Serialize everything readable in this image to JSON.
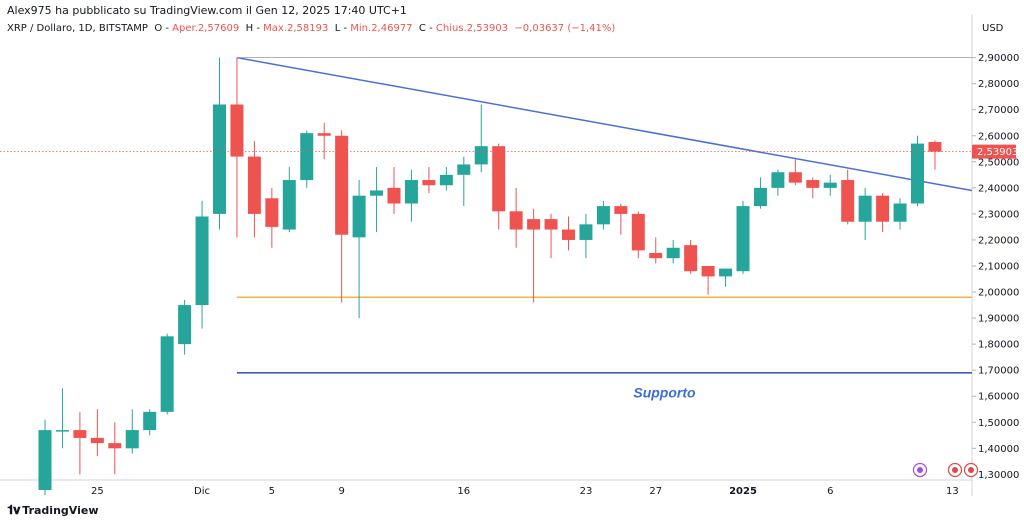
{
  "header": {
    "published_by": "Alex975 ha pubblicato su TradingView.com il Gen 12, 2025 17:40 UTC+1",
    "symbol": "XRP / Dollaro, 1D, BITSTAMP",
    "open_label": "O",
    "open_value": "Aper.2,57609",
    "high_label": "H",
    "high_value": "Max.2,58193",
    "low_label": "L",
    "low_value": "Min.2,46977",
    "close_label": "C",
    "close_value": "Chius.2,53903",
    "change_value": "−0,03637 (−1,41%)"
  },
  "axis": {
    "currency": "USD",
    "last_price_label": "2,53903"
  },
  "footer": {
    "brand": "TradingView",
    "logo_icon": "tradingview-logo-icon"
  },
  "colors": {
    "up": "#26a69a",
    "down": "#ef5350",
    "trendline": "#4a6fd8",
    "support_line": "#3b5bc4",
    "yellow_line": "#f2b544",
    "annotation": "#3b6fd8",
    "grid": "#f0f3fa"
  },
  "chart_data": {
    "type": "candlestick",
    "title": "XRP / Dollaro, 1D, BITSTAMP",
    "ylim": [
      1.24,
      2.96
    ],
    "y_ticks": [
      1.3,
      1.4,
      1.5,
      1.6,
      1.7,
      1.8,
      1.9,
      2.0,
      2.1,
      2.2,
      2.3,
      2.4,
      2.5,
      2.6,
      2.7,
      2.8,
      2.9
    ],
    "y_tick_labels": [
      "1,30000",
      "1,40000",
      "1,50000",
      "1,60000",
      "1,70000",
      "1,80000",
      "1,90000",
      "2,00000",
      "2,10000",
      "2,20000",
      "2,30000",
      "2,40000",
      "2,50000",
      "2,60000",
      "2,70000",
      "2,80000",
      "2,90000"
    ],
    "x_tick_labels": [
      {
        "index": 3,
        "label": "25"
      },
      {
        "index": 9,
        "label": "Dic"
      },
      {
        "index": 13,
        "label": "5"
      },
      {
        "index": 17,
        "label": "9"
      },
      {
        "index": 24,
        "label": "16"
      },
      {
        "index": 31,
        "label": "23"
      },
      {
        "index": 35,
        "label": "27"
      },
      {
        "index": 40,
        "label": "2025"
      },
      {
        "index": 45,
        "label": "6"
      },
      {
        "index": 52,
        "label": "13"
      }
    ],
    "candles": [
      {
        "o": 1.24,
        "h": 1.51,
        "l": 1.22,
        "c": 1.47
      },
      {
        "o": 1.47,
        "h": 1.63,
        "l": 1.4,
        "c": 1.47
      },
      {
        "o": 1.47,
        "h": 1.54,
        "l": 1.3,
        "c": 1.44
      },
      {
        "o": 1.44,
        "h": 1.55,
        "l": 1.37,
        "c": 1.42
      },
      {
        "o": 1.42,
        "h": 1.5,
        "l": 1.3,
        "c": 1.4
      },
      {
        "o": 1.4,
        "h": 1.55,
        "l": 1.38,
        "c": 1.47
      },
      {
        "o": 1.47,
        "h": 1.55,
        "l": 1.45,
        "c": 1.54
      },
      {
        "o": 1.54,
        "h": 1.84,
        "l": 1.53,
        "c": 1.83
      },
      {
        "o": 1.8,
        "h": 1.97,
        "l": 1.76,
        "c": 1.95
      },
      {
        "o": 1.95,
        "h": 2.35,
        "l": 1.86,
        "c": 2.29
      },
      {
        "o": 2.3,
        "h": 2.9,
        "l": 2.24,
        "c": 2.72
      },
      {
        "o": 2.72,
        "h": 2.9,
        "l": 2.21,
        "c": 2.52
      },
      {
        "o": 2.52,
        "h": 2.58,
        "l": 2.21,
        "c": 2.3
      },
      {
        "o": 2.36,
        "h": 2.4,
        "l": 2.17,
        "c": 2.25
      },
      {
        "o": 2.24,
        "h": 2.48,
        "l": 2.23,
        "c": 2.43
      },
      {
        "o": 2.43,
        "h": 2.62,
        "l": 2.4,
        "c": 2.61
      },
      {
        "o": 2.61,
        "h": 2.65,
        "l": 2.51,
        "c": 2.6
      },
      {
        "o": 2.6,
        "h": 2.62,
        "l": 1.96,
        "c": 2.22
      },
      {
        "o": 2.21,
        "h": 2.43,
        "l": 1.9,
        "c": 2.37
      },
      {
        "o": 2.37,
        "h": 2.48,
        "l": 2.23,
        "c": 2.39
      },
      {
        "o": 2.4,
        "h": 2.48,
        "l": 2.3,
        "c": 2.34
      },
      {
        "o": 2.34,
        "h": 2.47,
        "l": 2.27,
        "c": 2.43
      },
      {
        "o": 2.43,
        "h": 2.48,
        "l": 2.38,
        "c": 2.41
      },
      {
        "o": 2.41,
        "h": 2.48,
        "l": 2.39,
        "c": 2.45
      },
      {
        "o": 2.45,
        "h": 2.52,
        "l": 2.33,
        "c": 2.49
      },
      {
        "o": 2.49,
        "h": 2.72,
        "l": 2.46,
        "c": 2.56
      },
      {
        "o": 2.56,
        "h": 2.57,
        "l": 2.24,
        "c": 2.31
      },
      {
        "o": 2.31,
        "h": 2.4,
        "l": 2.17,
        "c": 2.24
      },
      {
        "o": 2.28,
        "h": 2.32,
        "l": 1.96,
        "c": 2.24
      },
      {
        "o": 2.28,
        "h": 2.3,
        "l": 2.13,
        "c": 2.24
      },
      {
        "o": 2.24,
        "h": 2.29,
        "l": 2.16,
        "c": 2.2
      },
      {
        "o": 2.2,
        "h": 2.3,
        "l": 2.13,
        "c": 2.26
      },
      {
        "o": 2.26,
        "h": 2.35,
        "l": 2.24,
        "c": 2.33
      },
      {
        "o": 2.33,
        "h": 2.34,
        "l": 2.22,
        "c": 2.3
      },
      {
        "o": 2.3,
        "h": 2.31,
        "l": 2.13,
        "c": 2.16
      },
      {
        "o": 2.15,
        "h": 2.21,
        "l": 2.11,
        "c": 2.13
      },
      {
        "o": 2.13,
        "h": 2.2,
        "l": 2.11,
        "c": 2.17
      },
      {
        "o": 2.18,
        "h": 2.2,
        "l": 2.07,
        "c": 2.08
      },
      {
        "o": 2.1,
        "h": 2.1,
        "l": 1.99,
        "c": 2.06
      },
      {
        "o": 2.06,
        "h": 2.09,
        "l": 2.02,
        "c": 2.09
      },
      {
        "o": 2.08,
        "h": 2.35,
        "l": 2.07,
        "c": 2.33
      },
      {
        "o": 2.33,
        "h": 2.44,
        "l": 2.32,
        "c": 2.4
      },
      {
        "o": 2.4,
        "h": 2.47,
        "l": 2.37,
        "c": 2.46
      },
      {
        "o": 2.46,
        "h": 2.51,
        "l": 2.41,
        "c": 2.42
      },
      {
        "o": 2.43,
        "h": 2.44,
        "l": 2.36,
        "c": 2.4
      },
      {
        "o": 2.4,
        "h": 2.45,
        "l": 2.37,
        "c": 2.42
      },
      {
        "o": 2.43,
        "h": 2.47,
        "l": 2.26,
        "c": 2.27
      },
      {
        "o": 2.27,
        "h": 2.4,
        "l": 2.2,
        "c": 2.37
      },
      {
        "o": 2.37,
        "h": 2.38,
        "l": 2.23,
        "c": 2.27
      },
      {
        "o": 2.27,
        "h": 2.36,
        "l": 2.24,
        "c": 2.34
      },
      {
        "o": 2.34,
        "h": 2.6,
        "l": 2.33,
        "c": 2.57
      },
      {
        "o": 2.57609,
        "h": 2.58193,
        "l": 2.46977,
        "c": 2.53903
      }
    ],
    "lines": [
      {
        "name": "resistance-trendline",
        "x": [
          11,
          55.1
        ],
        "y": [
          2.9,
          2.39
        ]
      },
      {
        "name": "high-reference-line",
        "x": [
          11,
          57
        ],
        "y": [
          2.9,
          2.9
        ]
      },
      {
        "name": "yellow-level-line",
        "x": [
          11,
          57
        ],
        "y": [
          1.98,
          1.98
        ]
      },
      {
        "name": "support-line",
        "x": [
          11,
          57
        ],
        "y": [
          1.69,
          1.69
        ]
      }
    ],
    "annotations": [
      {
        "text": "Supporto",
        "x": 35.5,
        "y": 1.615
      }
    ],
    "last_price": 2.53903
  }
}
